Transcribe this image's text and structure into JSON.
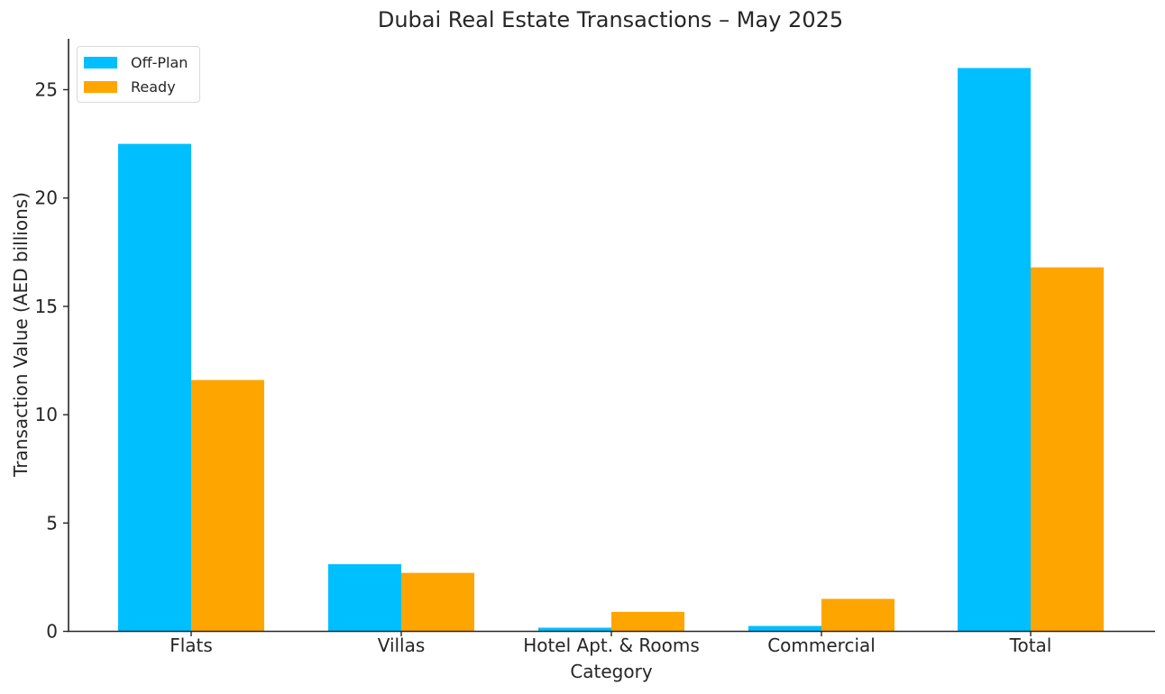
{
  "chart_data": {
    "type": "bar",
    "title": "Dubai Real Estate Transactions – May 2025",
    "xlabel": "Category",
    "ylabel": "Transaction Value (AED billions)",
    "categories": [
      "Flats",
      "Villas",
      "Hotel Apt. & Rooms",
      "Commercial",
      "Total"
    ],
    "series": [
      {
        "name": "Off-Plan",
        "color": "#00bfff",
        "values": [
          22.5,
          3.1,
          0.17,
          0.25,
          26.0
        ]
      },
      {
        "name": "Ready",
        "color": "#ffa500",
        "values": [
          11.6,
          2.7,
          0.9,
          1.5,
          16.8
        ]
      }
    ],
    "yticks": [
      0,
      5,
      10,
      15,
      20,
      25
    ],
    "ylim": [
      0,
      27.3
    ],
    "grid": false,
    "legend_position": "upper left"
  },
  "legend": {
    "items": [
      {
        "label": "Off-Plan",
        "color": "#00bfff"
      },
      {
        "label": "Ready",
        "color": "#ffa500"
      }
    ]
  }
}
